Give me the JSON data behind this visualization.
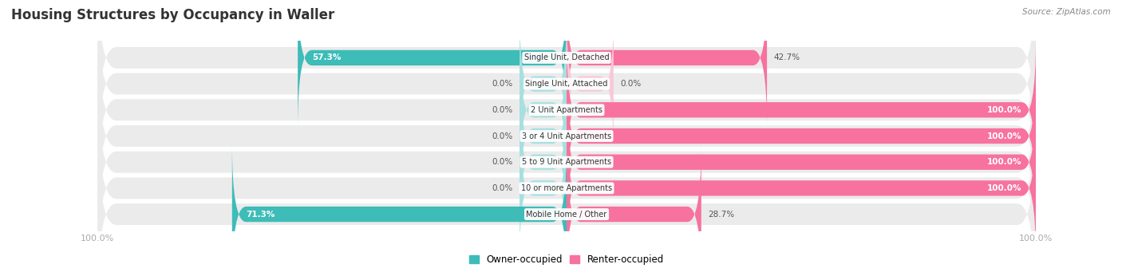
{
  "title": "Housing Structures by Occupancy in Waller",
  "source": "Source: ZipAtlas.com",
  "categories": [
    "Single Unit, Detached",
    "Single Unit, Attached",
    "2 Unit Apartments",
    "3 or 4 Unit Apartments",
    "5 to 9 Unit Apartments",
    "10 or more Apartments",
    "Mobile Home / Other"
  ],
  "owner_pct": [
    57.3,
    0.0,
    0.0,
    0.0,
    0.0,
    0.0,
    71.3
  ],
  "renter_pct": [
    42.7,
    0.0,
    100.0,
    100.0,
    100.0,
    100.0,
    28.7
  ],
  "owner_color": "#3dbcb8",
  "renter_color": "#f7729e",
  "owner_color_light": "#a8dfe0",
  "renter_color_light": "#f9c8d8",
  "row_bg_color": "#ebebeb",
  "label_color": "#555555",
  "title_color": "#333333",
  "source_color": "#888888",
  "axis_label_color": "#aaaaaa",
  "figsize": [
    14.06,
    3.41
  ],
  "dpi": 100,
  "legend_labels": [
    "Owner-occupied",
    "Renter-occupied"
  ]
}
